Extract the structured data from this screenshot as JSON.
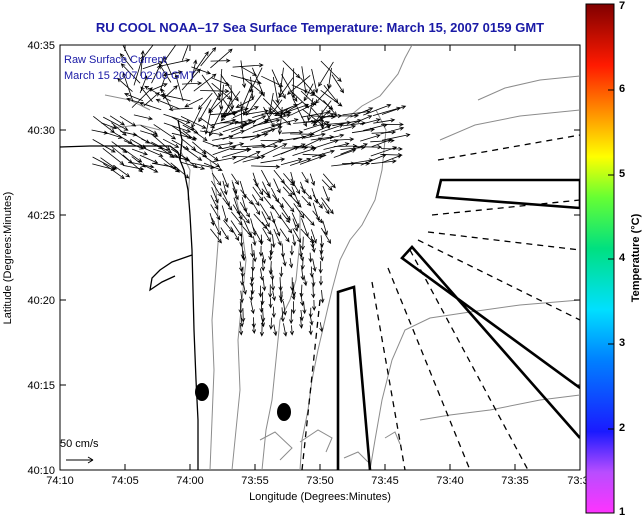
{
  "map": {
    "title": "RU COOL  NOAA–17  Sea Surface Temperature:  March 15, 2007 0159 GMT",
    "legend_line1": "Raw Surface Current",
    "legend_line2": "March 15 2007 02:00 GMT",
    "scale_label": "50 cm/s",
    "xlabel": "Longitude (Degrees:Minutes)",
    "ylabel": "Latitude (Degrees:Minutes)",
    "x_ticks": [
      "74:10",
      "74:05",
      "74:00",
      "73:55",
      "73:50",
      "73:45",
      "73:40",
      "73:35",
      "73:3"
    ],
    "y_ticks": [
      "40:35",
      "40:30",
      "40:25",
      "40:20",
      "40:15",
      "40:10"
    ]
  },
  "colorbar": {
    "label": "Temperature (°C)",
    "min": 1,
    "max": 7,
    "ticks": [
      "1",
      "2",
      "3",
      "4",
      "5",
      "6",
      "7"
    ]
  },
  "colors": {
    "title": "#1a1aa6",
    "coast": "#000000",
    "bathymetry": "#8c8c8c",
    "vectors": "#000000"
  }
}
